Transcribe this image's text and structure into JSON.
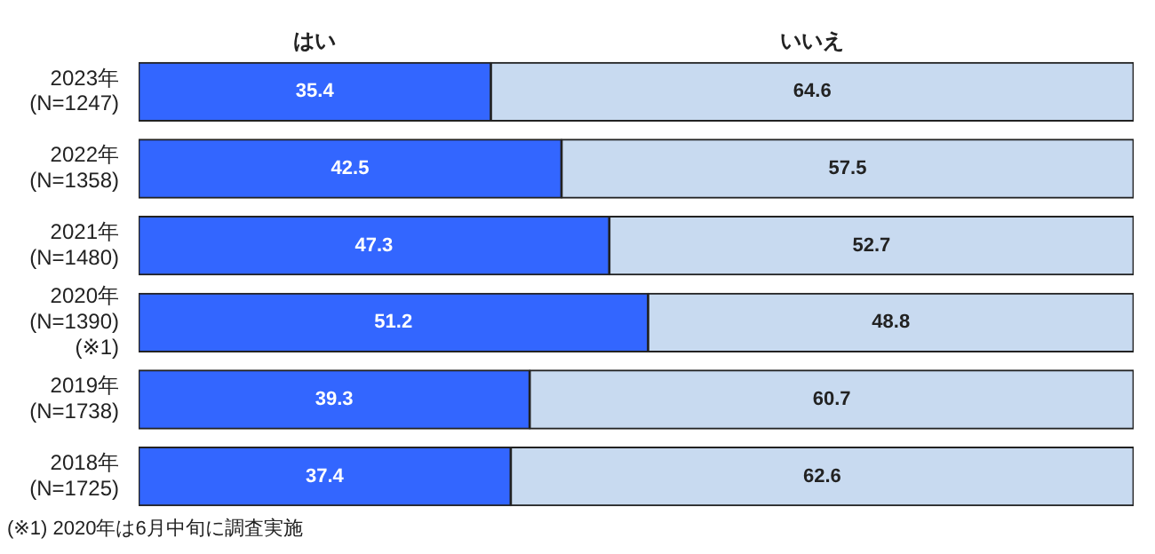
{
  "chart_data": {
    "type": "bar",
    "orientation": "horizontal",
    "stacked": true,
    "categories": [
      "2023年\n(N=1247)",
      "2022年\n(N=1358)",
      "2021年\n(N=1480)",
      "2020年\n(N=1390)\n(※1)",
      "2019年\n(N=1738)",
      "2018年\n(N=1725)"
    ],
    "series": [
      {
        "name": "はい",
        "color": "#3366ff",
        "values": [
          35.4,
          42.5,
          47.3,
          51.2,
          39.3,
          37.4
        ]
      },
      {
        "name": "いいえ",
        "color": "#c8daf0",
        "values": [
          64.6,
          57.5,
          52.7,
          48.8,
          60.7,
          62.6
        ]
      }
    ],
    "xlim": [
      0,
      100
    ],
    "tick_labels": "y",
    "legend": false,
    "data_labels": true,
    "annotations": [
      "(※1) 2020年は6月中旬に調査実施"
    ]
  }
}
